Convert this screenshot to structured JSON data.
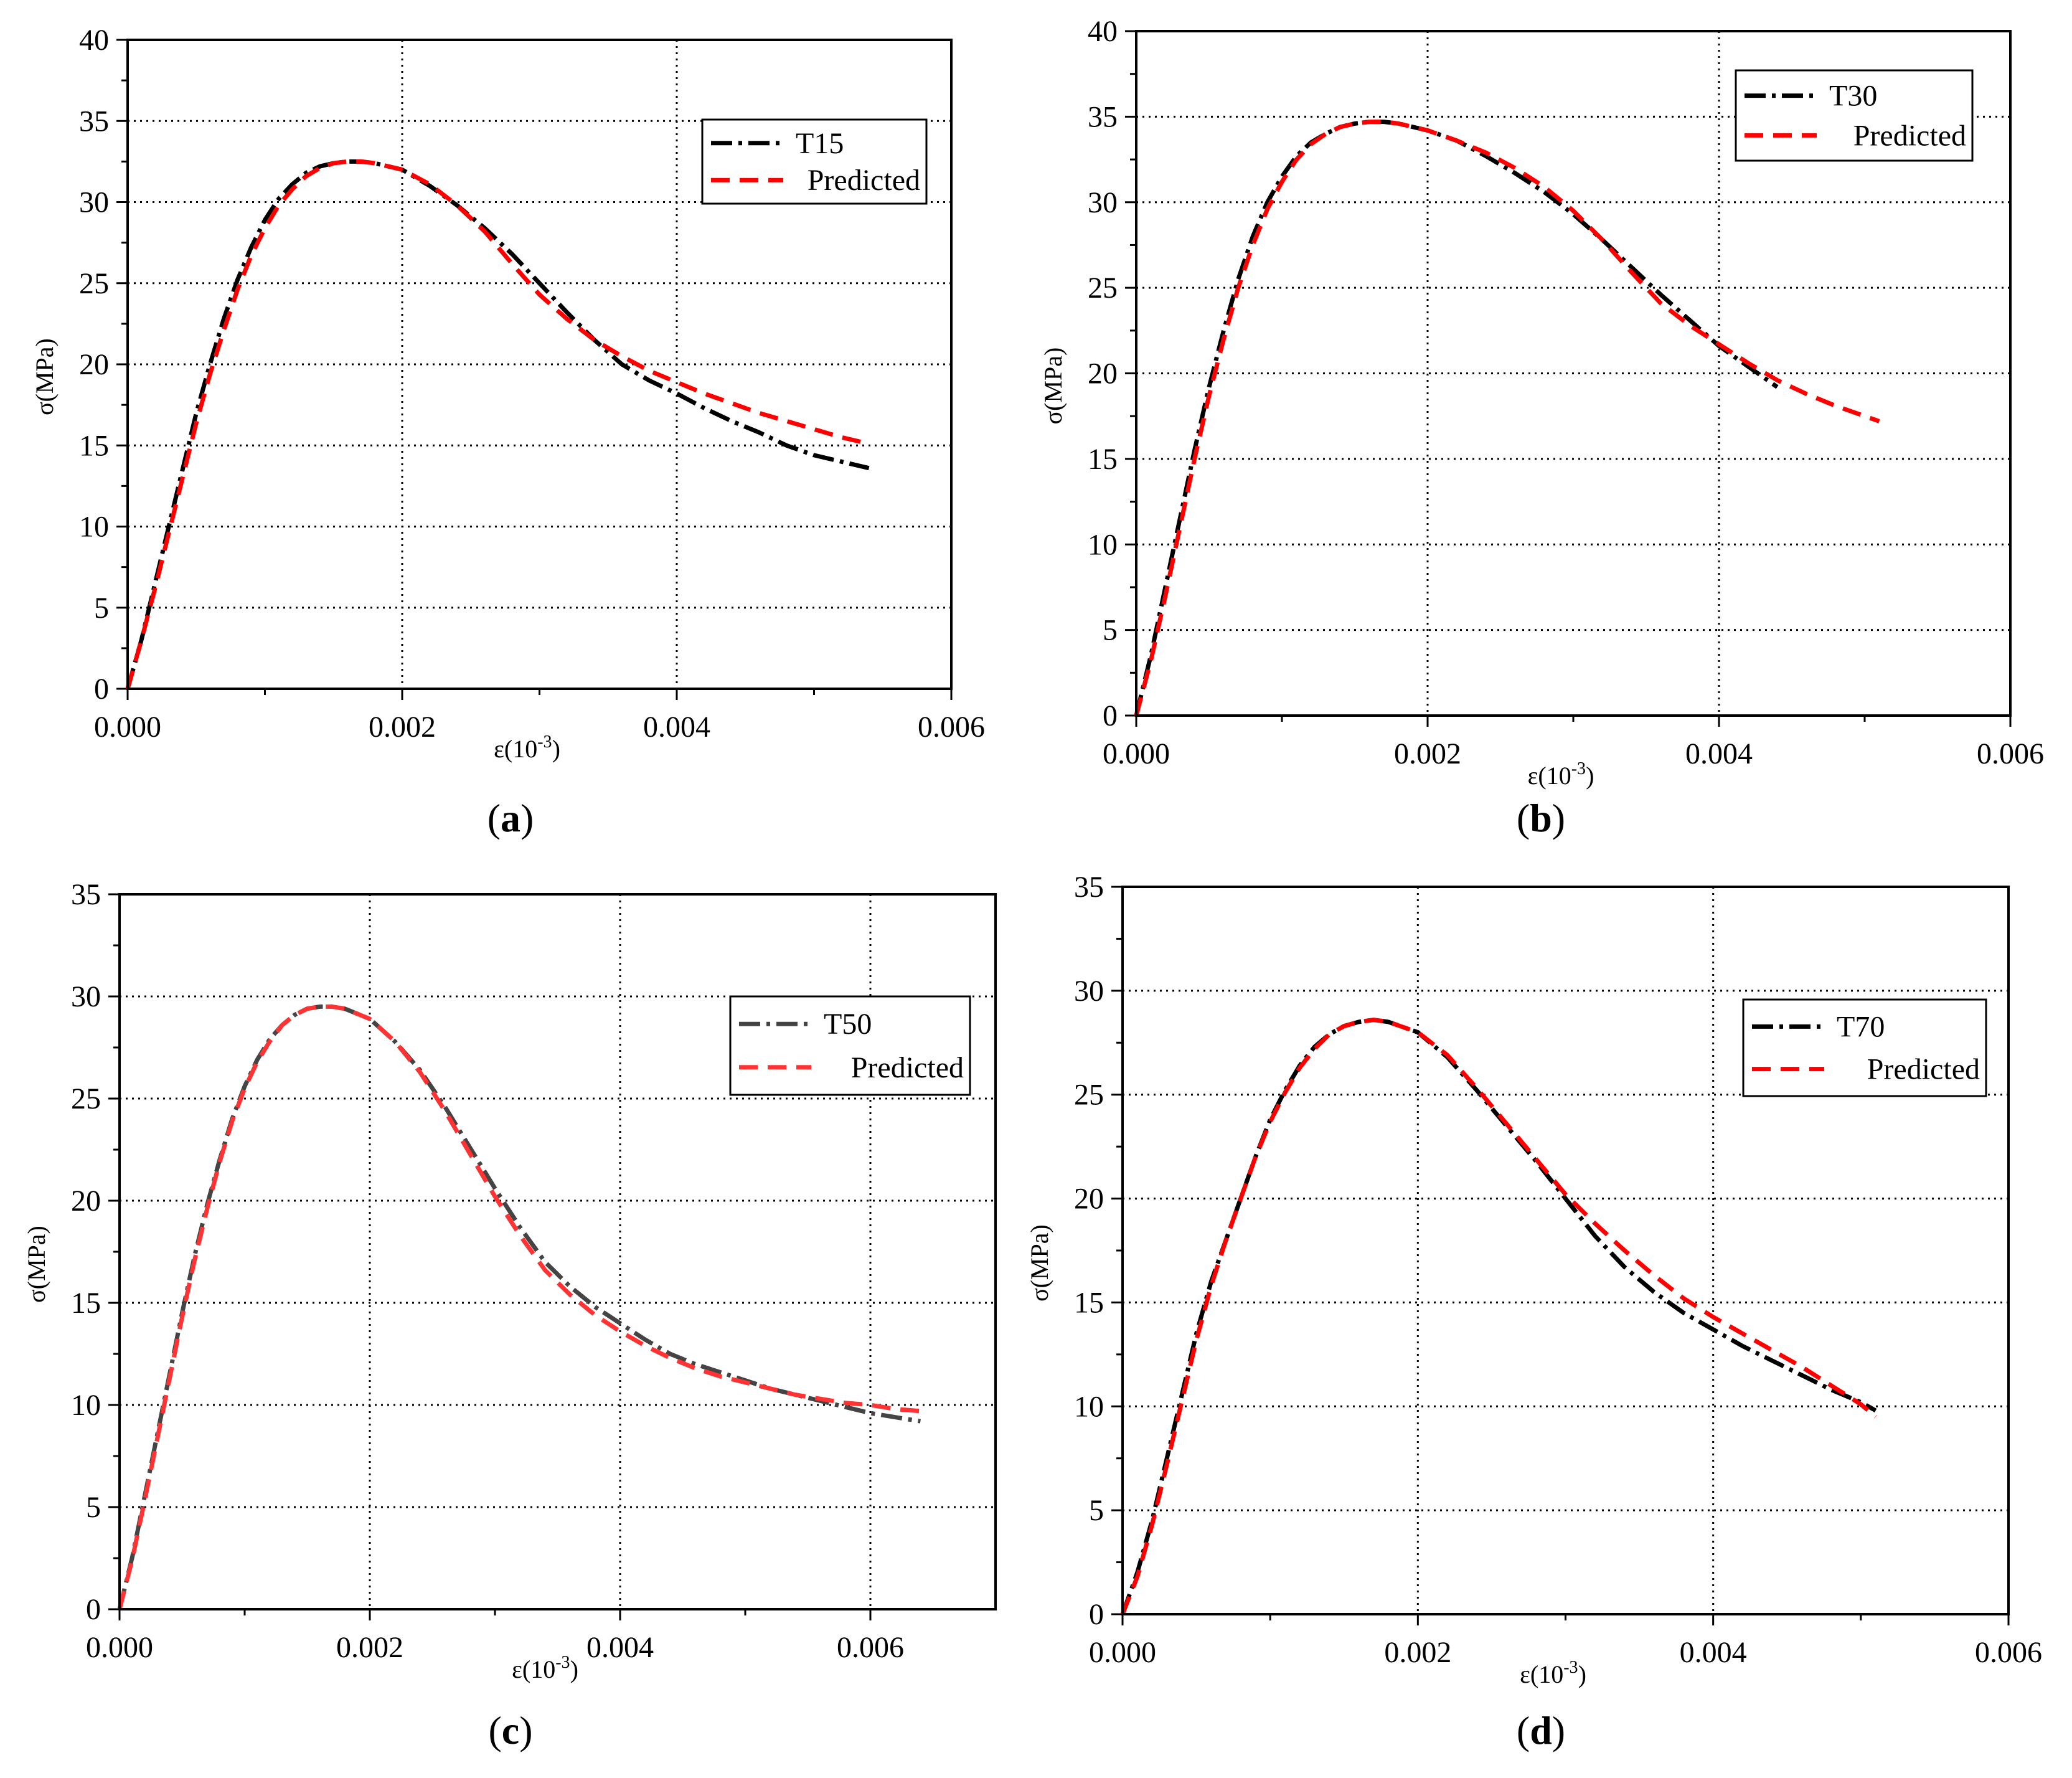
{
  "chart_data": [
    {
      "type": "line",
      "panel_label": "a",
      "xlabel": "ε(10",
      "xlabel_exp": "-3",
      "ylabel": "σ(MPa)",
      "xlim": [
        0,
        0.006
      ],
      "ylim": [
        0,
        40
      ],
      "x_ticks": [
        "0.000",
        "0.002",
        "0.004",
        "0.006"
      ],
      "y_ticks": [
        "0",
        "5",
        "10",
        "15",
        "20",
        "25",
        "30",
        "35",
        "40"
      ],
      "x_tick_values": [
        0,
        0.002,
        0.004,
        0.006
      ],
      "y_tick_values": [
        0,
        5,
        10,
        15,
        20,
        25,
        30,
        35,
        40
      ],
      "grid": true,
      "legend_position": "top-right",
      "series": [
        {
          "name": "T15",
          "style": "dashdot",
          "color": "#000000",
          "x": [
            0,
            0.0001,
            0.0002,
            0.0003,
            0.0004,
            0.0005,
            0.0006,
            0.0007,
            0.0008,
            0.0009,
            0.001,
            0.0011,
            0.0012,
            0.0013,
            0.0014,
            0.0015,
            0.0016,
            0.0017,
            0.0018,
            0.002,
            0.0022,
            0.0024,
            0.0026,
            0.0028,
            0.003,
            0.0032,
            0.0034,
            0.0036,
            0.0038,
            0.004,
            0.0042,
            0.0044,
            0.0046,
            0.0048,
            0.005,
            0.0052,
            0.0054
          ],
          "y": [
            0,
            3,
            6.5,
            10,
            13.5,
            17,
            20,
            22.8,
            25.2,
            27.2,
            28.9,
            30.2,
            31.1,
            31.8,
            32.2,
            32.4,
            32.5,
            32.5,
            32.4,
            32,
            31,
            29.8,
            28.4,
            26.8,
            25,
            23.2,
            21.5,
            20,
            19,
            18.2,
            17.3,
            16.5,
            15.8,
            15,
            14.4,
            14,
            13.6
          ]
        },
        {
          "name": "Predicted",
          "style": "dashed",
          "color": "#ff0000",
          "x": [
            0,
            0.0001,
            0.0002,
            0.0003,
            0.0004,
            0.0005,
            0.0006,
            0.0007,
            0.0008,
            0.0009,
            0.001,
            0.0011,
            0.0012,
            0.0013,
            0.0014,
            0.0015,
            0.0016,
            0.0017,
            0.0018,
            0.002,
            0.0022,
            0.0024,
            0.0026,
            0.0028,
            0.003,
            0.0032,
            0.0034,
            0.0036,
            0.0038,
            0.004,
            0.0042,
            0.0044,
            0.0046,
            0.0048,
            0.005,
            0.0052,
            0.0054
          ],
          "y": [
            0,
            3,
            6.2,
            9.6,
            13,
            16.4,
            19.4,
            22.1,
            24.6,
            26.7,
            28.4,
            29.8,
            30.8,
            31.6,
            32.1,
            32.4,
            32.5,
            32.5,
            32.4,
            32,
            31.1,
            29.8,
            28.2,
            26.2,
            24.3,
            22.8,
            21.5,
            20.5,
            19.6,
            18.9,
            18.2,
            17.6,
            17,
            16.5,
            16,
            15.5,
            15.1
          ]
        }
      ]
    },
    {
      "type": "line",
      "panel_label": "b",
      "xlabel": "ε(10",
      "xlabel_exp": "-3",
      "ylabel": "σ(MPa)",
      "xlim": [
        0,
        0.006
      ],
      "ylim": [
        0,
        40
      ],
      "x_ticks": [
        "0.000",
        "0.002",
        "0.004",
        "0.006"
      ],
      "y_ticks": [
        "0",
        "5",
        "10",
        "15",
        "20",
        "25",
        "30",
        "35",
        "40"
      ],
      "x_tick_values": [
        0,
        0.002,
        0.004,
        0.006
      ],
      "y_tick_values": [
        0,
        5,
        10,
        15,
        20,
        25,
        30,
        35,
        40
      ],
      "grid": true,
      "legend_position": "top-right",
      "series": [
        {
          "name": "T30",
          "style": "dashdot",
          "color": "#000000",
          "x": [
            0,
            0.0001,
            0.0002,
            0.0003,
            0.0004,
            0.0005,
            0.0006,
            0.0007,
            0.0008,
            0.0009,
            0.001,
            0.0011,
            0.0012,
            0.0013,
            0.0014,
            0.0015,
            0.0016,
            0.0017,
            0.0018,
            0.002,
            0.0022,
            0.0024,
            0.0026,
            0.0028,
            0.003,
            0.0032,
            0.0034,
            0.0036,
            0.0038,
            0.004,
            0.0042,
            0.0044
          ],
          "y": [
            0,
            3.5,
            7.5,
            11.5,
            15.5,
            19.2,
            22.5,
            25.5,
            28,
            30,
            31.5,
            32.7,
            33.5,
            34,
            34.4,
            34.6,
            34.7,
            34.7,
            34.6,
            34.2,
            33.6,
            32.7,
            31.7,
            30.6,
            29.3,
            27.8,
            26.2,
            24.6,
            23.1,
            21.6,
            20.4,
            19.2
          ]
        },
        {
          "name": "Predicted",
          "style": "dashed",
          "color": "#ff0000",
          "x": [
            0,
            0.0001,
            0.0002,
            0.0003,
            0.0004,
            0.0005,
            0.0006,
            0.0007,
            0.0008,
            0.0009,
            0.001,
            0.0011,
            0.0012,
            0.0013,
            0.0014,
            0.0015,
            0.0016,
            0.0017,
            0.0018,
            0.002,
            0.0022,
            0.0024,
            0.0026,
            0.0028,
            0.003,
            0.0032,
            0.0034,
            0.0036,
            0.0038,
            0.004,
            0.0042,
            0.0044,
            0.0046,
            0.0048,
            0.005,
            0.0051
          ],
          "y": [
            0,
            3.2,
            7,
            11,
            15,
            18.7,
            22,
            25,
            27.5,
            29.6,
            31.2,
            32.5,
            33.4,
            34,
            34.4,
            34.6,
            34.7,
            34.7,
            34.6,
            34.2,
            33.6,
            32.9,
            32,
            30.9,
            29.5,
            27.8,
            25.9,
            24.1,
            22.8,
            21.7,
            20.6,
            19.6,
            18.8,
            18.1,
            17.5,
            17.2
          ]
        }
      ]
    },
    {
      "type": "line",
      "panel_label": "c",
      "xlabel": "ε(10",
      "xlabel_exp": "-3",
      "ylabel": "σ(MPa)",
      "xlim": [
        0,
        0.007
      ],
      "ylim": [
        0,
        35
      ],
      "x_ticks": [
        "0.000",
        "0.002",
        "0.004",
        "0.006"
      ],
      "y_ticks": [
        "0",
        "5",
        "10",
        "15",
        "20",
        "25",
        "30",
        "35"
      ],
      "x_tick_values": [
        0,
        0.002,
        0.004,
        0.006
      ],
      "y_tick_values": [
        0,
        5,
        10,
        15,
        20,
        25,
        30,
        35
      ],
      "grid": true,
      "legend_position": "top-right",
      "series": [
        {
          "name": "T50",
          "style": "dashdot",
          "color": "#444444",
          "x": [
            0,
            0.0001,
            0.0002,
            0.0003,
            0.0004,
            0.0005,
            0.0006,
            0.0007,
            0.0008,
            0.0009,
            0.001,
            0.0011,
            0.0012,
            0.0013,
            0.0014,
            0.0015,
            0.0016,
            0.0017,
            0.0018,
            0.002,
            0.0022,
            0.0024,
            0.0026,
            0.0028,
            0.003,
            0.0032,
            0.0034,
            0.0036,
            0.0038,
            0.004,
            0.0042,
            0.0044,
            0.0046,
            0.0048,
            0.005,
            0.0052,
            0.0054,
            0.0056,
            0.0058,
            0.006,
            0.0062,
            0.0064
          ],
          "y": [
            0,
            2.5,
            5.5,
            8.5,
            11.5,
            14.5,
            17.3,
            19.8,
            22,
            24,
            25.6,
            26.9,
            27.9,
            28.6,
            29.1,
            29.4,
            29.5,
            29.5,
            29.4,
            28.9,
            27.8,
            26.4,
            24.6,
            22.6,
            20.6,
            18.7,
            17,
            15.8,
            14.8,
            14,
            13.2,
            12.5,
            12,
            11.6,
            11.2,
            10.8,
            10.5,
            10.2,
            9.9,
            9.6,
            9.4,
            9.2
          ]
        },
        {
          "name": "Predicted",
          "style": "dashed",
          "color": "#ff3333",
          "x": [
            0,
            0.0001,
            0.0002,
            0.0003,
            0.0004,
            0.0005,
            0.0006,
            0.0007,
            0.0008,
            0.0009,
            0.001,
            0.0011,
            0.0012,
            0.0013,
            0.0014,
            0.0015,
            0.0016,
            0.0017,
            0.0018,
            0.002,
            0.0022,
            0.0024,
            0.0026,
            0.0028,
            0.003,
            0.0032,
            0.0034,
            0.0036,
            0.0038,
            0.004,
            0.0042,
            0.0044,
            0.0046,
            0.0048,
            0.005,
            0.0052,
            0.0054,
            0.0056,
            0.0058,
            0.006,
            0.0062,
            0.0064
          ],
          "y": [
            0,
            2.4,
            5.3,
            8.3,
            11.3,
            14.3,
            17.1,
            19.6,
            21.9,
            23.9,
            25.5,
            26.8,
            27.8,
            28.6,
            29.1,
            29.4,
            29.5,
            29.5,
            29.4,
            28.9,
            27.8,
            26.3,
            24.4,
            22.3,
            20.2,
            18.3,
            16.6,
            15.4,
            14.4,
            13.6,
            12.9,
            12.3,
            11.8,
            11.4,
            11.1,
            10.8,
            10.5,
            10.3,
            10.1,
            10,
            9.8,
            9.7
          ]
        }
      ]
    },
    {
      "type": "line",
      "panel_label": "d",
      "xlabel": "ε(10",
      "xlabel_exp": "-3",
      "ylabel": "σ(MPa)",
      "xlim": [
        0,
        0.006
      ],
      "ylim": [
        0,
        35
      ],
      "x_ticks": [
        "0.000",
        "0.002",
        "0.004",
        "0.006"
      ],
      "y_ticks": [
        "0",
        "5",
        "10",
        "15",
        "20",
        "25",
        "30",
        "35"
      ],
      "x_tick_values": [
        0,
        0.002,
        0.004,
        0.006
      ],
      "y_tick_values": [
        0,
        5,
        10,
        15,
        20,
        25,
        30,
        35
      ],
      "grid": true,
      "legend_position": "top-right",
      "series": [
        {
          "name": "T70",
          "style": "dashdot",
          "color": "#000000",
          "x": [
            0,
            0.0001,
            0.0002,
            0.0003,
            0.0004,
            0.0005,
            0.0006,
            0.0007,
            0.0008,
            0.0009,
            0.001,
            0.0011,
            0.0012,
            0.0013,
            0.0014,
            0.0015,
            0.0016,
            0.0017,
            0.0018,
            0.002,
            0.0022,
            0.0024,
            0.0026,
            0.0028,
            0.003,
            0.0032,
            0.0034,
            0.0036,
            0.0038,
            0.004,
            0.0042,
            0.0044,
            0.0046,
            0.0048,
            0.005,
            0.0051
          ],
          "y": [
            0,
            2,
            4.5,
            7.5,
            10.5,
            13.5,
            16,
            18,
            20,
            22,
            23.8,
            25.2,
            26.4,
            27.3,
            27.9,
            28.3,
            28.5,
            28.6,
            28.5,
            28,
            26.8,
            25.2,
            23.5,
            21.8,
            20,
            18.2,
            16.7,
            15.5,
            14.5,
            13.7,
            12.9,
            12.2,
            11.5,
            10.8,
            10.2,
            9.8
          ]
        },
        {
          "name": "Predicted",
          "style": "dashed",
          "color": "#ff0000",
          "x": [
            0,
            0.0001,
            0.0002,
            0.0003,
            0.0004,
            0.0005,
            0.0006,
            0.0007,
            0.0008,
            0.0009,
            0.001,
            0.0011,
            0.0012,
            0.0013,
            0.0014,
            0.0015,
            0.0016,
            0.0017,
            0.0018,
            0.002,
            0.0022,
            0.0024,
            0.0026,
            0.0028,
            0.003,
            0.0032,
            0.0034,
            0.0036,
            0.0038,
            0.004,
            0.0042,
            0.0044,
            0.0046,
            0.0048,
            0.005,
            0.0051
          ],
          "y": [
            0,
            1.8,
            4.3,
            7.2,
            10.2,
            13.2,
            15.8,
            18,
            20,
            22,
            23.7,
            25.1,
            26.3,
            27.2,
            27.9,
            28.3,
            28.5,
            28.6,
            28.5,
            28,
            26.9,
            25.3,
            23.6,
            21.9,
            20.2,
            18.8,
            17.5,
            16.3,
            15.2,
            14.3,
            13.5,
            12.7,
            11.9,
            11,
            10.1,
            9.5
          ]
        }
      ]
    }
  ]
}
